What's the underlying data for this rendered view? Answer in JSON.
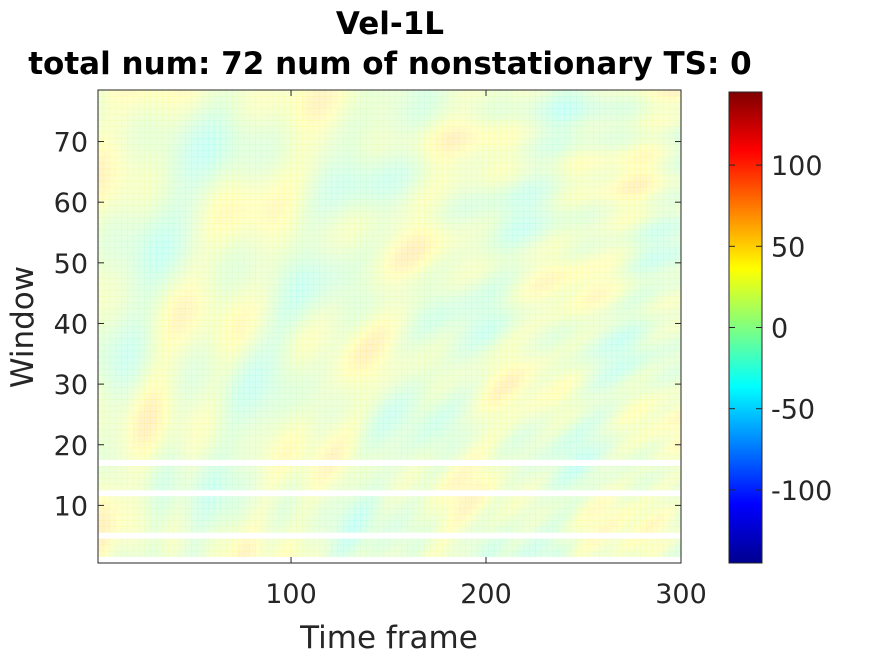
{
  "chart_data": {
    "type": "heatmap",
    "title": "Vel-1L",
    "subtitle": "total num: 72 num of nonstationary TS: 0",
    "xlabel": "Time frame",
    "ylabel": "Window",
    "xlim": [
      1,
      300
    ],
    "ylim": [
      0.5,
      78.5
    ],
    "x_ticks": [
      100,
      200,
      300
    ],
    "y_ticks": [
      10,
      20,
      30,
      40,
      50,
      60,
      70
    ],
    "colorbar": {
      "colormap": "jet",
      "range": [
        -145,
        145
      ],
      "ticks": [
        -100,
        -50,
        0,
        50,
        100
      ]
    },
    "blank_rows": [
      17,
      12,
      5,
      1
    ],
    "grid": false
  }
}
